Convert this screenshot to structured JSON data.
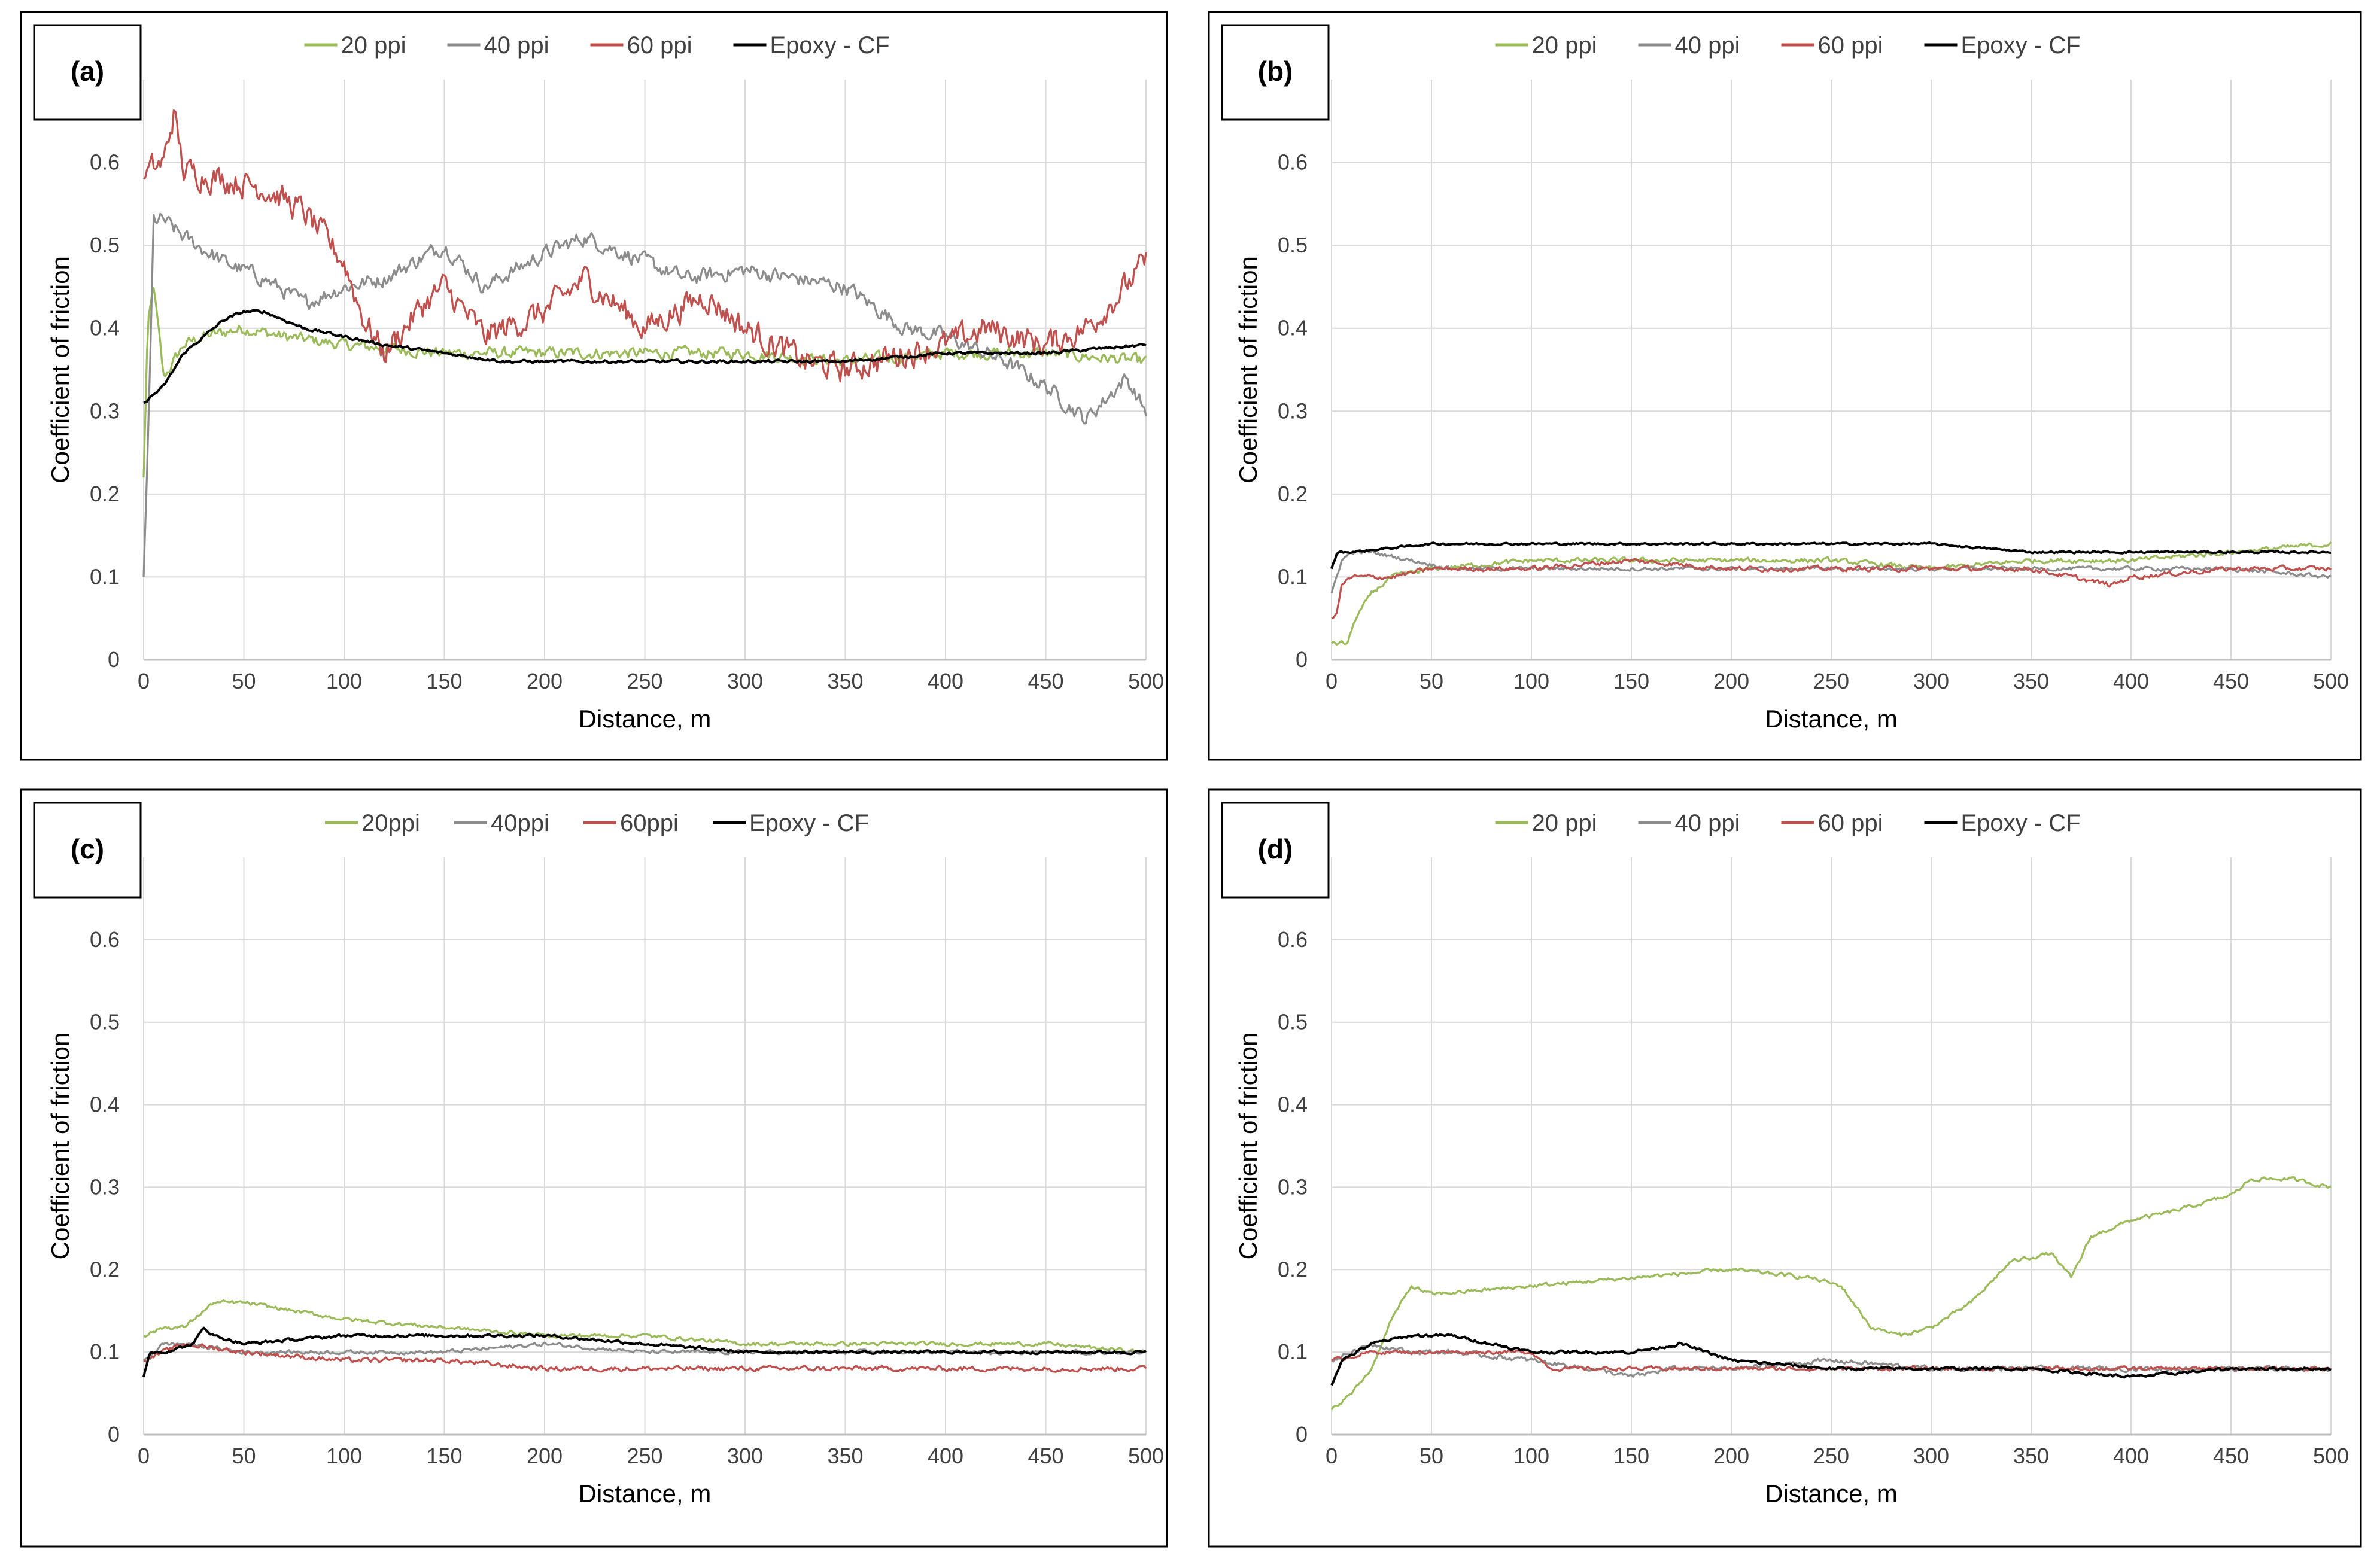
{
  "colors": {
    "green": "#9BBB59",
    "gray": "#8C8C8C",
    "red": "#C0504D",
    "black": "#000000"
  },
  "chart_data": [
    {
      "type": "line",
      "panel_label": "(a)",
      "xlabel": "Distance, m",
      "ylabel": "Coefficient of friction",
      "xlim": [
        0,
        500
      ],
      "ylim": [
        0,
        0.7
      ],
      "x_ticks": [
        0,
        50,
        100,
        150,
        200,
        250,
        300,
        350,
        400,
        450,
        500
      ],
      "y_ticks": [
        0,
        0.1,
        0.2,
        0.3,
        0.4,
        0.5,
        0.6
      ],
      "y_tick_labels": [
        "0",
        "0.1",
        "0.2",
        "0.3",
        "0.4",
        "0.5",
        "0.6"
      ],
      "legend_position": "top",
      "series": [
        {
          "name": "20 ppi",
          "color": "#9BBB59",
          "x": [
            0,
            2,
            5,
            10,
            20,
            30,
            50,
            70,
            100,
            150,
            200,
            250,
            300,
            350,
            400,
            450,
            500
          ],
          "y": [
            0.22,
            0.4,
            0.45,
            0.34,
            0.38,
            0.39,
            0.4,
            0.39,
            0.38,
            0.37,
            0.37,
            0.37,
            0.37,
            0.36,
            0.37,
            0.37,
            0.36
          ]
        },
        {
          "name": "40 ppi",
          "color": "#8C8C8C",
          "x": [
            0,
            3,
            5,
            10,
            20,
            40,
            60,
            80,
            100,
            120,
            150,
            170,
            200,
            220,
            250,
            270,
            300,
            350,
            380,
            400,
            430,
            450,
            470,
            490,
            500
          ],
          "y": [
            0.1,
            0.33,
            0.53,
            0.53,
            0.51,
            0.48,
            0.46,
            0.43,
            0.45,
            0.46,
            0.5,
            0.45,
            0.49,
            0.51,
            0.48,
            0.46,
            0.47,
            0.45,
            0.4,
            0.39,
            0.36,
            0.33,
            0.29,
            0.34,
            0.3
          ]
        },
        {
          "name": "60 ppi",
          "color": "#C0504D",
          "x": [
            0,
            3,
            10,
            15,
            20,
            40,
            60,
            80,
            100,
            110,
            120,
            140,
            150,
            170,
            200,
            220,
            250,
            280,
            300,
            330,
            350,
            380,
            400,
            420,
            450,
            470,
            490,
            500
          ],
          "y": [
            0.58,
            0.59,
            0.6,
            0.66,
            0.59,
            0.58,
            0.57,
            0.54,
            0.48,
            0.41,
            0.37,
            0.43,
            0.45,
            0.39,
            0.42,
            0.46,
            0.4,
            0.44,
            0.4,
            0.36,
            0.35,
            0.37,
            0.38,
            0.4,
            0.38,
            0.4,
            0.45,
            0.48
          ]
        },
        {
          "name": "Epoxy - CF",
          "color": "#000000",
          "x": [
            0,
            10,
            20,
            30,
            40,
            50,
            60,
            80,
            100,
            120,
            150,
            180,
            200,
            250,
            300,
            350,
            400,
            450,
            500
          ],
          "y": [
            0.31,
            0.33,
            0.37,
            0.39,
            0.41,
            0.42,
            0.42,
            0.4,
            0.39,
            0.38,
            0.37,
            0.36,
            0.36,
            0.36,
            0.36,
            0.36,
            0.37,
            0.37,
            0.38
          ]
        }
      ]
    },
    {
      "type": "line",
      "panel_label": "(b)",
      "xlabel": "Distance, m",
      "ylabel": "Coefficient of friction",
      "xlim": [
        0,
        500
      ],
      "ylim": [
        0,
        0.7
      ],
      "x_ticks": [
        0,
        50,
        100,
        150,
        200,
        250,
        300,
        350,
        400,
        450,
        500
      ],
      "y_ticks": [
        0,
        0.1,
        0.2,
        0.3,
        0.4,
        0.5,
        0.6
      ],
      "y_tick_labels": [
        "0",
        "0.1",
        "0.2",
        "0.3",
        "0.4",
        "0.5",
        "0.6"
      ],
      "legend_position": "top",
      "series": [
        {
          "name": "20 ppi",
          "color": "#9BBB59",
          "x": [
            0,
            8,
            12,
            20,
            30,
            50,
            100,
            150,
            200,
            250,
            300,
            350,
            400,
            450,
            500
          ],
          "y": [
            0.02,
            0.02,
            0.05,
            0.08,
            0.1,
            0.11,
            0.12,
            0.12,
            0.12,
            0.12,
            0.11,
            0.12,
            0.12,
            0.13,
            0.14
          ]
        },
        {
          "name": "40 ppi",
          "color": "#8C8C8C",
          "x": [
            0,
            5,
            10,
            20,
            40,
            60,
            80,
            100,
            150,
            200,
            250,
            300,
            350,
            400,
            450,
            500
          ],
          "y": [
            0.08,
            0.12,
            0.13,
            0.13,
            0.12,
            0.11,
            0.11,
            0.11,
            0.11,
            0.11,
            0.11,
            0.11,
            0.11,
            0.11,
            0.11,
            0.1
          ]
        },
        {
          "name": "60 ppi",
          "color": "#C0504D",
          "x": [
            0,
            3,
            5,
            10,
            30,
            50,
            100,
            150,
            200,
            250,
            300,
            350,
            390,
            400,
            450,
            500
          ],
          "y": [
            0.05,
            0.06,
            0.09,
            0.1,
            0.1,
            0.11,
            0.11,
            0.12,
            0.11,
            0.11,
            0.11,
            0.11,
            0.09,
            0.1,
            0.11,
            0.11
          ]
        },
        {
          "name": "Epoxy - CF",
          "color": "#000000",
          "x": [
            0,
            3,
            10,
            50,
            100,
            150,
            200,
            250,
            300,
            350,
            400,
            450,
            500
          ],
          "y": [
            0.11,
            0.13,
            0.13,
            0.14,
            0.14,
            0.14,
            0.14,
            0.14,
            0.14,
            0.13,
            0.13,
            0.13,
            0.13
          ]
        }
      ]
    },
    {
      "type": "line",
      "panel_label": "(c)",
      "xlabel": "Distance, m",
      "ylabel": "Coefficient of friction",
      "xlim": [
        0,
        500
      ],
      "ylim": [
        0,
        0.7
      ],
      "x_ticks": [
        0,
        50,
        100,
        150,
        200,
        250,
        300,
        350,
        400,
        450,
        500
      ],
      "y_ticks": [
        0,
        0.1,
        0.2,
        0.3,
        0.4,
        0.5,
        0.6
      ],
      "y_tick_labels": [
        "0",
        "0.1",
        "0.2",
        "0.3",
        "0.4",
        "0.5",
        "0.6"
      ],
      "legend_position": "top",
      "series": [
        {
          "name": "20ppi",
          "color": "#9BBB59",
          "x": [
            0,
            10,
            20,
            35,
            50,
            100,
            150,
            200,
            250,
            300,
            350,
            400,
            450,
            500
          ],
          "y": [
            0.12,
            0.13,
            0.13,
            0.16,
            0.16,
            0.14,
            0.13,
            0.12,
            0.12,
            0.11,
            0.11,
            0.11,
            0.11,
            0.1
          ]
        },
        {
          "name": "40ppi",
          "color": "#8C8C8C",
          "x": [
            0,
            10,
            20,
            50,
            100,
            150,
            200,
            250,
            300,
            350,
            400,
            450,
            500
          ],
          "y": [
            0.09,
            0.11,
            0.11,
            0.1,
            0.1,
            0.1,
            0.11,
            0.1,
            0.1,
            0.1,
            0.1,
            0.1,
            0.1
          ]
        },
        {
          "name": "60ppi",
          "color": "#C0504D",
          "x": [
            0,
            10,
            20,
            50,
            100,
            150,
            200,
            250,
            300,
            350,
            400,
            450,
            500
          ],
          "y": [
            0.09,
            0.1,
            0.11,
            0.1,
            0.09,
            0.09,
            0.08,
            0.08,
            0.08,
            0.08,
            0.08,
            0.08,
            0.08
          ]
        },
        {
          "name": "Epoxy - CF",
          "color": "#000000",
          "x": [
            0,
            3,
            10,
            25,
            30,
            35,
            50,
            100,
            150,
            200,
            250,
            300,
            350,
            400,
            450,
            500
          ],
          "y": [
            0.07,
            0.1,
            0.1,
            0.11,
            0.13,
            0.12,
            0.11,
            0.12,
            0.12,
            0.12,
            0.11,
            0.1,
            0.1,
            0.1,
            0.1,
            0.1
          ]
        }
      ]
    },
    {
      "type": "line",
      "panel_label": "(d)",
      "xlabel": "Distance, m",
      "ylabel": "Coefficient of friction",
      "xlim": [
        0,
        500
      ],
      "ylim": [
        0,
        0.7
      ],
      "x_ticks": [
        0,
        50,
        100,
        150,
        200,
        250,
        300,
        350,
        400,
        450,
        500
      ],
      "y_ticks": [
        0,
        0.1,
        0.2,
        0.3,
        0.4,
        0.5,
        0.6
      ],
      "y_tick_labels": [
        "0",
        "0.1",
        "0.2",
        "0.3",
        "0.4",
        "0.5",
        "0.6"
      ],
      "legend_position": "top",
      "series": [
        {
          "name": "20 ppi",
          "color": "#9BBB59",
          "x": [
            0,
            10,
            20,
            30,
            40,
            50,
            100,
            150,
            200,
            240,
            255,
            270,
            285,
            300,
            320,
            340,
            360,
            370,
            380,
            400,
            420,
            450,
            460,
            480,
            500
          ],
          "y": [
            0.03,
            0.05,
            0.08,
            0.14,
            0.18,
            0.17,
            0.18,
            0.19,
            0.2,
            0.19,
            0.18,
            0.13,
            0.12,
            0.13,
            0.16,
            0.21,
            0.22,
            0.19,
            0.24,
            0.26,
            0.27,
            0.29,
            0.31,
            0.31,
            0.3
          ]
        },
        {
          "name": "40 ppi",
          "color": "#8C8C8C",
          "x": [
            0,
            10,
            20,
            40,
            60,
            100,
            130,
            150,
            170,
            200,
            250,
            300,
            350,
            400,
            450,
            500
          ],
          "y": [
            0.09,
            0.1,
            0.11,
            0.1,
            0.1,
            0.09,
            0.08,
            0.07,
            0.08,
            0.08,
            0.09,
            0.08,
            0.08,
            0.08,
            0.08,
            0.08
          ]
        },
        {
          "name": "60 ppi",
          "color": "#C0504D",
          "x": [
            0,
            20,
            50,
            100,
            110,
            150,
            200,
            250,
            300,
            350,
            400,
            450,
            500
          ],
          "y": [
            0.09,
            0.1,
            0.1,
            0.1,
            0.08,
            0.08,
            0.08,
            0.08,
            0.08,
            0.08,
            0.08,
            0.08,
            0.08
          ]
        },
        {
          "name": "Epoxy - CF",
          "color": "#000000",
          "x": [
            0,
            5,
            20,
            40,
            60,
            80,
            100,
            150,
            175,
            200,
            250,
            300,
            350,
            400,
            450,
            500
          ],
          "y": [
            0.06,
            0.09,
            0.11,
            0.12,
            0.12,
            0.11,
            0.1,
            0.1,
            0.11,
            0.09,
            0.08,
            0.08,
            0.08,
            0.07,
            0.08,
            0.08
          ]
        }
      ]
    }
  ]
}
